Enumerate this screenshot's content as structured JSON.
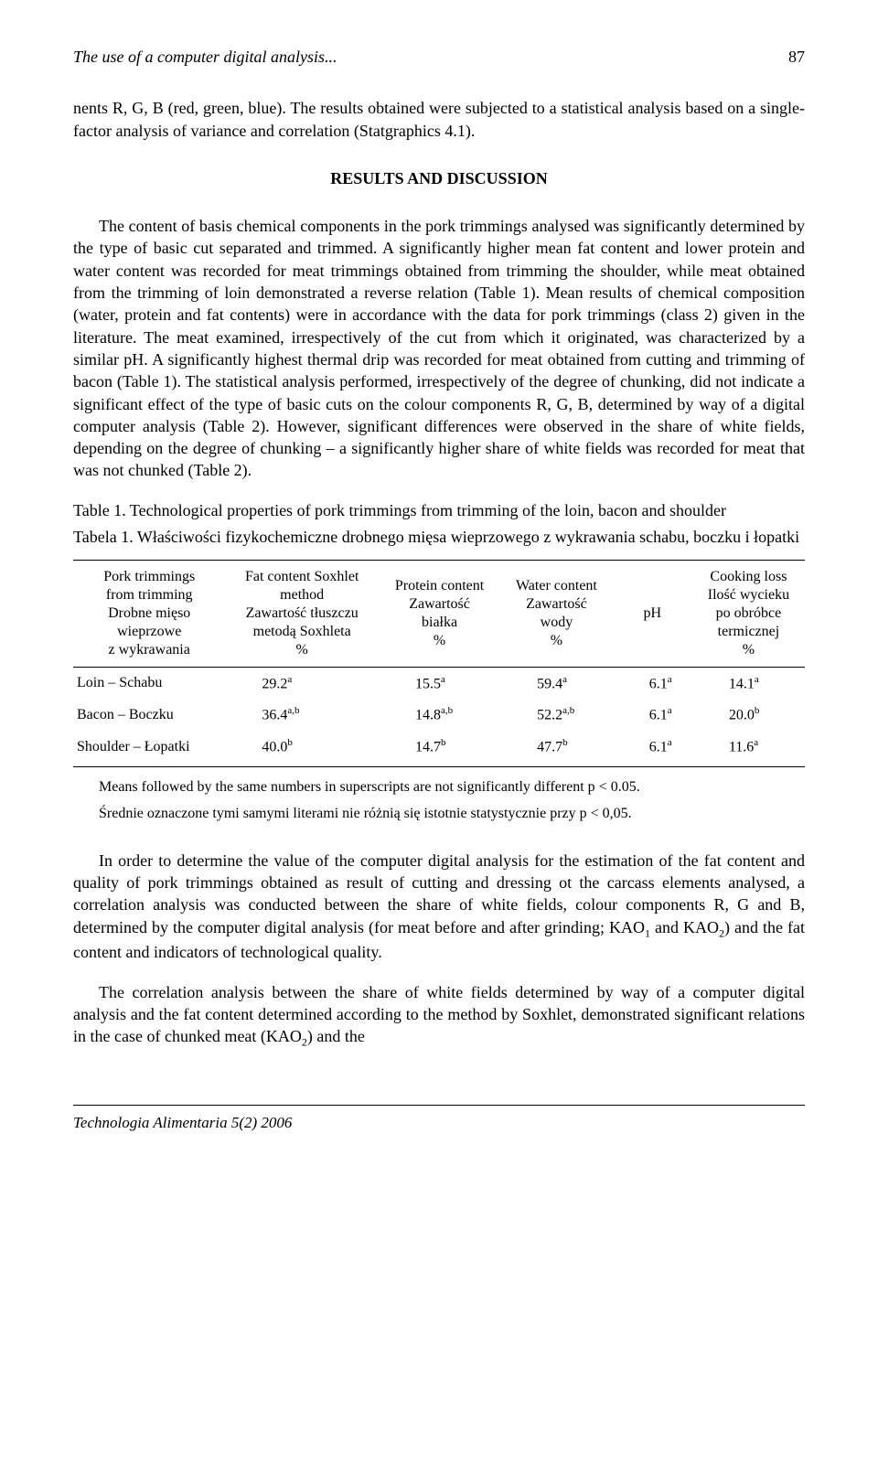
{
  "header": {
    "running_title": "The use of a computer digital analysis...",
    "page_number": "87"
  },
  "intro_paragraph": "nents R, G, B (red, green, blue). The results obtained were subjected to a statistical analysis based on a single-factor analysis of variance and correlation (Statgraphics 4.1).",
  "section_heading": "RESULTS AND DISCUSSION",
  "main_paragraph": "The content of basis chemical components in the pork trimmings analysed was significantly determined by the type of basic cut separated and trimmed. A significantly higher mean fat content and lower protein and water content was recorded for meat trimmings obtained from trimming the shoulder, while meat obtained from the trimming of loin demonstrated a reverse relation (Table 1). Mean results of chemical composition (water, protein and fat contents) were in accordance with the data for pork trimmings (class 2) given in the literature. The meat examined, irrespectively of the cut from which it originated, was characterized by a similar pH. A significantly highest thermal drip was recorded for meat obtained from cutting and trimming of bacon (Table 1). The statistical analysis performed, irrespectively of the degree of chunking, did not indicate a significant effect of the type of basic cuts on the colour components R, G, B, determined by way of a digital computer analysis (Table 2). However, significant differences were observed in the share of white fields, depending on the degree of chunking – a significantly higher share of white fields was recorded for meat that was not chunked (Table 2).",
  "table1": {
    "caption_en": "Table 1. Technological properties of pork trimmings from trimming of the loin, bacon and shoulder",
    "caption_pl": "Tabela 1. Właściwości fizykochemiczne drobnego mięsa wieprzowego z wykrawania schabu, boczku i łopatki",
    "columns": {
      "c0": "Pork trimmings\nfrom trimming\nDrobne mięso\nwieprzowe\nz wykrawania",
      "c1": "Fat content Soxhlet\nmethod\nZawartość tłuszczu\nmetodą Soxhleta\n%",
      "c2": "Protein content\nZawartość\nbiałka\n%",
      "c3": "Water content\nZawartość\nwody\n%",
      "c4": "pH",
      "c5": "Cooking loss\nIlość wycieku\npo obróbce\ntermicznej\n%"
    },
    "rows": [
      {
        "label": "Loin – Schabu",
        "fat": "29.2",
        "fat_sup": "a",
        "protein": "15.5",
        "protein_sup": "a",
        "water": "59.4",
        "water_sup": "a",
        "ph": "6.1",
        "ph_sup": "a",
        "cook": "14.1",
        "cook_sup": "a"
      },
      {
        "label": "Bacon – Boczku",
        "fat": "36.4",
        "fat_sup": "a,b",
        "protein": "14.8",
        "protein_sup": "a,b",
        "water": "52.2",
        "water_sup": "a,b",
        "ph": "6.1",
        "ph_sup": "a",
        "cook": "20.0",
        "cook_sup": "b"
      },
      {
        "label": "Shoulder – Łopatki",
        "fat": "40.0",
        "fat_sup": "b",
        "protein": "14.7",
        "protein_sup": "b",
        "water": "47.7",
        "water_sup": "b",
        "ph": "6.1",
        "ph_sup": "a",
        "cook": "11.6",
        "cook_sup": "a"
      }
    ],
    "note_en": "Means followed by the same numbers in superscripts are not significantly different p < 0.05.",
    "note_pl": "Średnie oznaczone tymi samymi literami nie różnią się istotnie statystycznie przy p < 0,05."
  },
  "para_after_table_1": "In order to determine the value of the computer digital analysis for the estimation of the fat content and quality of pork trimmings obtained as result of cutting and dressing ot the carcass elements analysed, a correlation analysis was conducted between the share of white fields, colour components R, G and B, determined by the computer digital analysis (for meat before and after grinding; KAO",
  "kao1_sub": "1",
  "para_after_table_2": " and KAO",
  "kao2_sub": "2",
  "para_after_table_3": ") and the fat content and indicators of technological quality.",
  "para_final_1": "The correlation analysis between the share of white fields determined by way of a computer digital analysis and the fat content determined according to the method by Soxhlet, demonstrated significant relations in the case of chunked meat (KAO",
  "para_final_sub": "2",
  "para_final_2": ") and the",
  "footer": "Technologia Alimentaria 5(2) 2006"
}
